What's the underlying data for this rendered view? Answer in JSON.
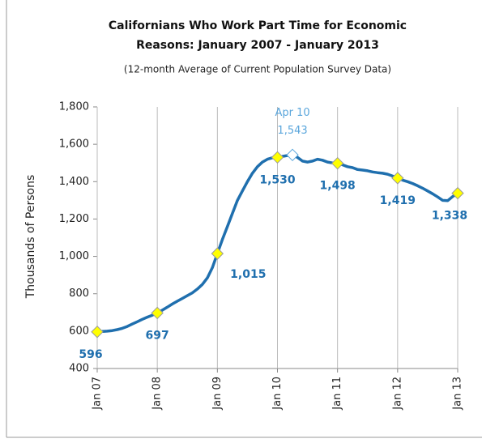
{
  "chart_data": {
    "type": "line",
    "title": [
      "Californians Who Work Part Time for Economic",
      "Reasons:  January 2007 - January 2013"
    ],
    "subtitle": "(12-month  Average of Current Population Survey Data)",
    "y_label": "Thousands of Persons",
    "annotation": "Apr 10",
    "categories": [
      "Jan 07",
      null,
      null,
      null,
      null,
      null,
      null,
      null,
      null,
      null,
      null,
      null,
      "Jan 08",
      null,
      null,
      null,
      null,
      null,
      null,
      null,
      null,
      null,
      null,
      null,
      "Jan 09",
      null,
      null,
      null,
      null,
      null,
      null,
      null,
      null,
      null,
      null,
      null,
      "Jan 10",
      null,
      null,
      null,
      null,
      null,
      null,
      null,
      null,
      null,
      null,
      null,
      "Jan 11",
      null,
      null,
      null,
      null,
      null,
      null,
      null,
      null,
      null,
      null,
      null,
      "Jan 12",
      null,
      null,
      null,
      null,
      null,
      null,
      null,
      null,
      null,
      null,
      null,
      "Jan 13"
    ],
    "values": [
      596,
      598,
      600,
      603,
      608,
      615,
      625,
      638,
      650,
      663,
      675,
      685,
      697,
      712,
      728,
      745,
      760,
      775,
      790,
      805,
      825,
      850,
      885,
      940,
      1015,
      1090,
      1160,
      1230,
      1300,
      1350,
      1400,
      1445,
      1480,
      1505,
      1520,
      1528,
      1530,
      1535,
      1540,
      1543,
      1530,
      1510,
      1505,
      1510,
      1520,
      1515,
      1505,
      1500,
      1498,
      1490,
      1480,
      1475,
      1465,
      1462,
      1458,
      1452,
      1448,
      1445,
      1440,
      1430,
      1419,
      1408,
      1400,
      1390,
      1378,
      1365,
      1350,
      1335,
      1318,
      1300,
      1298,
      1320,
      1338
    ],
    "value_labels": [
      "596",
      null,
      null,
      null,
      null,
      null,
      null,
      null,
      null,
      null,
      null,
      null,
      "697",
      null,
      null,
      null,
      null,
      null,
      null,
      null,
      null,
      null,
      null,
      null,
      "1,015",
      null,
      null,
      null,
      null,
      null,
      null,
      null,
      null,
      null,
      null,
      null,
      "1,530",
      null,
      null,
      "1,543",
      null,
      null,
      null,
      null,
      null,
      null,
      null,
      null,
      "1,498",
      null,
      null,
      null,
      null,
      null,
      null,
      null,
      null,
      null,
      null,
      null,
      "1,419",
      null,
      null,
      null,
      null,
      null,
      null,
      null,
      null,
      null,
      null,
      null,
      "1,338"
    ],
    "color": "#1f6fae",
    "marker_color": "#ffff00",
    "highlight_color": "#5aa6dc",
    "ylim": [
      400,
      1800
    ],
    "yticks": [
      400,
      600,
      800,
      {
        "value": 1000,
        "label": "1,000"
      },
      {
        "value": 1200,
        "label": "1,200"
      },
      {
        "value": 1400,
        "label": "1,400"
      },
      {
        "value": 1600,
        "label": "1,600"
      },
      {
        "value": 1800,
        "label": "1,800"
      }
    ],
    "grid": "x"
  }
}
